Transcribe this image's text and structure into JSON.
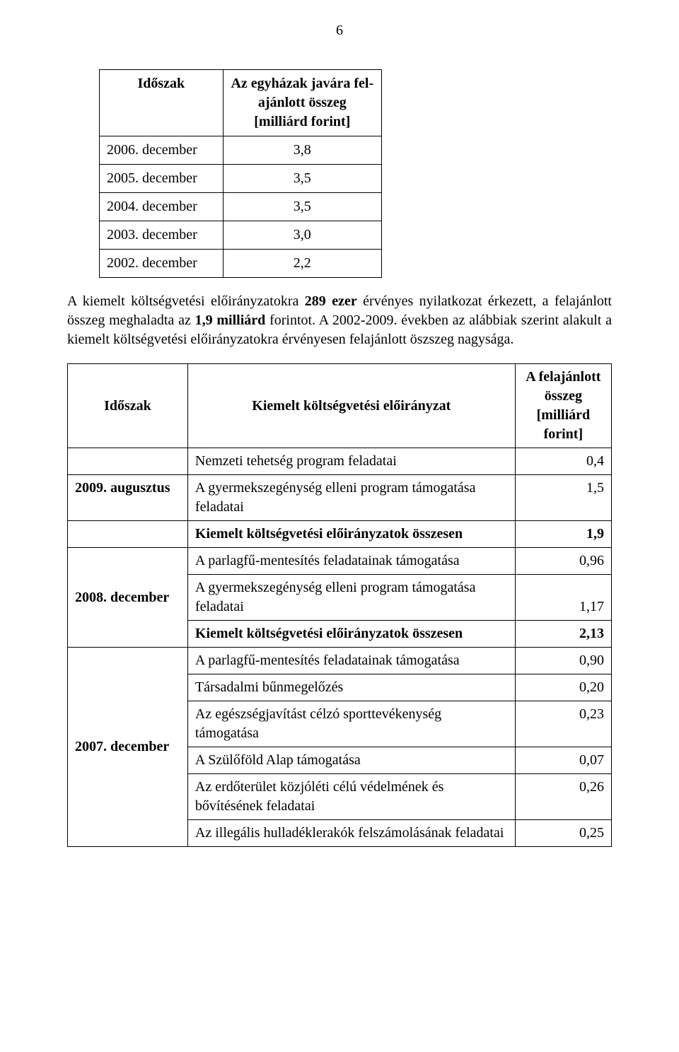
{
  "page_number": "6",
  "table1": {
    "header": {
      "col1": "Időszak",
      "col2": "Az egyházak javára fel­ajánlott összeg [milliárd forint]"
    },
    "rows": [
      {
        "period": "2006. december",
        "value": "3,8"
      },
      {
        "period": "2005. december",
        "value": "3,5"
      },
      {
        "period": "2004. december",
        "value": "3,5"
      },
      {
        "period": "2003. december",
        "value": "3,0"
      },
      {
        "period": "2002. december",
        "value": "2,2"
      }
    ]
  },
  "paragraph": "A kiemelt költségvetési előirányzatokra 289 ezer érvényes nyilatkozat érkezett, a felajánlott összeg meghaladta az 1,9 milliárd forintot. A 2002-2009. években az aláb­biak szerint alakult a kiemelt költségvetési előirányzatokra érvényesen felajánlott ösz­szeg nagysága.",
  "paragraph_bold_parts": [
    "289 ezer",
    "1,9 milliárd"
  ],
  "table2": {
    "header": {
      "col1": "Időszak",
      "col2": "Kiemelt költségvetési előirányzat",
      "col3": "A felajánlott összeg [milliárd forint]"
    },
    "rows": [
      {
        "date": "",
        "desc": "Nemzeti tehetség program feladatai",
        "value": "0,4",
        "desc_bold": false
      },
      {
        "date": "2009. augusztus",
        "desc": "A gyermekszegénység elleni program támogatása feladatai",
        "value": "1,5",
        "desc_bold": false
      },
      {
        "date": "",
        "desc": "Kiemelt költségvetési előirányzatok összesen",
        "value": "1,9",
        "desc_bold": true
      },
      {
        "date": "",
        "desc": "A parlagfű-mentesítés feladatainak támogatása",
        "value": "0,96",
        "desc_bold": false,
        "merge_start": true
      },
      {
        "date": "2008. december",
        "desc": "A gyermekszegénység elleni program támogatása feladatai",
        "value": "1,17",
        "desc_bold": false
      },
      {
        "date": "",
        "desc": "Kiemelt költségvetési előirányzatok összesen",
        "value": "2,13",
        "desc_bold": true
      },
      {
        "date": "",
        "desc": "A parlagfű-mentesítés feladatainak támogatása",
        "value": "0,90",
        "desc_bold": false
      },
      {
        "date": "",
        "desc": "Társadalmi bűnmegelőzés",
        "value": "0,20",
        "desc_bold": false
      },
      {
        "date": "",
        "desc": "Az egészségjavítást célzó sporttevékenység támogatása",
        "value": "0,23",
        "desc_bold": false
      },
      {
        "date": "2007. december",
        "desc": "A Szülőföld Alap támogatása",
        "value": "0,07",
        "desc_bold": false
      },
      {
        "date": "",
        "desc": "Az erdőterület közjóléti célú védelmének és bővítésének feladatai",
        "value": "0,26",
        "desc_bold": false
      },
      {
        "date": "",
        "desc": "Az illegális hulladéklerakók felszámolásának feladatai",
        "value": "0,25",
        "desc_bold": false
      }
    ]
  }
}
